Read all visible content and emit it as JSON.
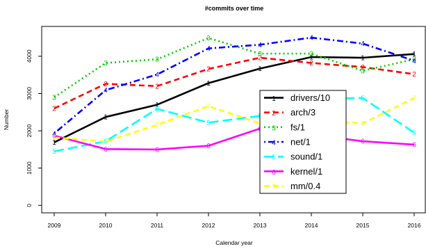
{
  "chart_data": {
    "type": "line",
    "title": "#commits over time",
    "xlabel": "Calendar year",
    "ylabel": "Number",
    "x": [
      2009,
      2010,
      2011,
      2012,
      2013,
      2014,
      2015,
      2016
    ],
    "xticks": [
      "2009",
      "2010",
      "2011",
      "2012",
      "2013",
      "2014",
      "2015",
      "2016"
    ],
    "yticks": [
      "0",
      "1000",
      "2000",
      "3000",
      "4000"
    ],
    "ylim": [
      -200,
      4800
    ],
    "legend_position": "center-right",
    "series": [
      {
        "name": "drivers/10",
        "marker": "1",
        "color": "#000000",
        "style": "solid",
        "values": [
          1690,
          2370,
          2700,
          3280,
          3670,
          3980,
          3960,
          4060
        ]
      },
      {
        "name": "arch/3",
        "marker": "2",
        "color": "#ff0000",
        "style": "dashed",
        "values": [
          2600,
          3260,
          3200,
          3660,
          3960,
          3820,
          3710,
          3520
        ]
      },
      {
        "name": "fs/1",
        "marker": "3",
        "color": "#00cd00",
        "style": "dotted",
        "values": [
          2900,
          3820,
          3920,
          4490,
          4070,
          4070,
          3610,
          3920
        ]
      },
      {
        "name": "net/1",
        "marker": "4",
        "color": "#0000ff",
        "style": "dotdash",
        "values": [
          1930,
          3090,
          3510,
          4210,
          4310,
          4500,
          4340,
          3880
        ]
      },
      {
        "name": "sound/1",
        "marker": "5",
        "color": "#00ffff",
        "style": "longdash",
        "values": [
          1450,
          1720,
          2590,
          2220,
          2400,
          2860,
          2880,
          1950
        ]
      },
      {
        "name": "kernel/1",
        "marker": "6",
        "color": "#ff00ff",
        "style": "solid",
        "values": [
          1870,
          1510,
          1500,
          1600,
          2060,
          1900,
          1720,
          1630
        ]
      },
      {
        "name": "mm/0.4",
        "marker": "7",
        "color": "#ffff00",
        "style": "dashed",
        "values": [
          1820,
          1710,
          2160,
          2660,
          2200,
          2300,
          2200,
          2880
        ]
      }
    ]
  }
}
